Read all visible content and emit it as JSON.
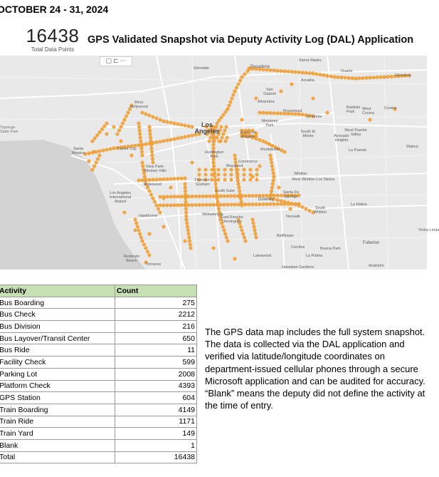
{
  "header": {
    "date_range": "OCTOBER 24 - 31, 2024",
    "total_count": "16438",
    "total_label": "Total Data Points",
    "title": "GPS Validated Snapshot via Deputy Activity Log (DAL) Application"
  },
  "map": {
    "toolbar": [
      "▢",
      "⊏",
      "⋯"
    ],
    "cities": {
      "glendale": "Glendale",
      "pasadena": "Pasadena",
      "sierra_madre": "Sierra Madre",
      "arcadia": "Arcadia",
      "duarte": "Duarte",
      "glendora": "Glendora",
      "san_gabriel": "San Gabriel",
      "alhambra": "Alhambra",
      "rosemead": "Rosemead",
      "el_monte": "El Monte",
      "baldwin_park": "Baldwin Park",
      "west_covina": "West Covina",
      "covina": "Covina",
      "west_hollywood": "West Hollywood",
      "los_angeles": "Los Angeles",
      "monterey_park": "Monterey Park",
      "east_la": "East Los Angeles",
      "south_el_monte": "South El Monte",
      "west_puente_valley": "West Puente Valley",
      "avocado_heights": "Avocado Heights",
      "walnut": "Walnut",
      "la_puente": "La Puente",
      "culver_city": "Culver City",
      "santa_monica": "Santa Monica",
      "montebello": "Montebello",
      "commerce": "Commerce",
      "view_park": "View Park-Windsor Hills",
      "maywood": "Maywood",
      "huntington_park": "Huntington Park",
      "florence_graham": "Florence-Graham",
      "inglewood": "Inglewood",
      "la_airport": "Los Angeles International Airport",
      "south_gate": "South Gate",
      "whittier": "Whittier",
      "west_whittier": "West Whittier-Los Nietos",
      "santa_fe_springs": "Santa Fe Springs",
      "downey": "Downey",
      "la_habra": "La Habra",
      "hawthorne": "Hawthorne",
      "willowbrook": "Willowbrook",
      "east_compton": "East Rancho Dominguez",
      "norwalk": "Norwalk",
      "south_whittier": "South Whittier",
      "bellflower": "Bellflower",
      "cerritos": "Cerritos",
      "buena_park": "Buena Park",
      "fullerton": "Fullerton",
      "yorba_linda": "Yorba Linda",
      "redondo_beach": "Redondo Beach",
      "torrance": "Torrance",
      "lakewood": "Lakewood",
      "la_palma": "La Palma",
      "anaheim": "Anaheim",
      "hawaiian_gardens": "Hawaiian Gardens",
      "topanga": "Topanga State Park"
    },
    "colors": {
      "land": "#e9e9e9",
      "water": "#d3d3d3",
      "road": "#ffffff",
      "dot": "#f5a742",
      "dot_stroke": "#e08a1e"
    }
  },
  "table": {
    "headers": {
      "activity": "Activity",
      "count": "Count"
    },
    "rows": [
      {
        "activity": "Bus Boarding",
        "count": "275"
      },
      {
        "activity": "Bus Check",
        "count": "2212"
      },
      {
        "activity": "Bus Division",
        "count": "216"
      },
      {
        "activity": "Bus Layover/Transit Center",
        "count": "650"
      },
      {
        "activity": "Bus Ride",
        "count": "11"
      },
      {
        "activity": "Facility Check",
        "count": "599"
      },
      {
        "activity": "Parking Lot",
        "count": "2008"
      },
      {
        "activity": "Platform Check",
        "count": "4393"
      },
      {
        "activity": "GPS Station",
        "count": "604"
      },
      {
        "activity": "Train Boarding",
        "count": "4149"
      },
      {
        "activity": "Train Ride",
        "count": "1171"
      },
      {
        "activity": "Train Yard",
        "count": "149"
      },
      {
        "activity": "Blank",
        "count": "1"
      },
      {
        "activity": "Total",
        "count": "16438"
      }
    ]
  },
  "description": "The GPS data map includes the full system snapshot. The data is collected via the DAL application and verified via latitude/longitude coordinates on department-issued cellular phones through a secure Microsoft application and can be audited for accuracy. “Blank” means the deputy did not define the activity at the time of entry."
}
